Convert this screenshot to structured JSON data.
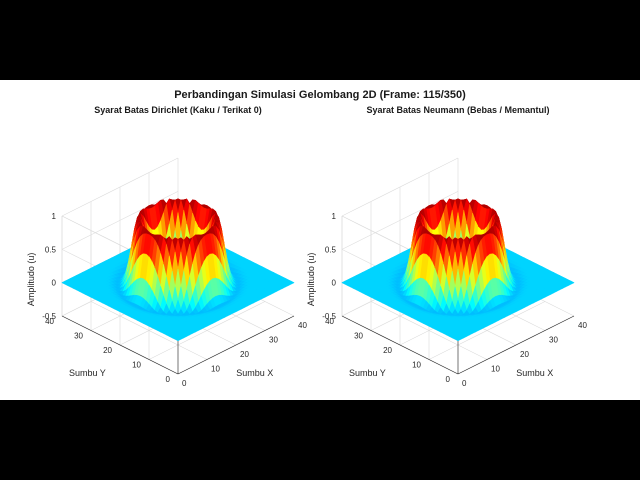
{
  "figure": {
    "title": "Perbandingan Simulasi Gelombang 2D (Frame: 115/350)"
  },
  "chart_data": [
    {
      "type": "surface",
      "title": "Syarat Batas Dirichlet (Kaku / Terikat 0)",
      "xlabel": "Sumbu X",
      "ylabel": "Sumbu Y",
      "zlabel": "Amplitudo (u)",
      "xlim": [
        0,
        40
      ],
      "ylim": [
        0,
        40
      ],
      "zlim": [
        -0.5,
        1
      ],
      "xticks": [
        "0",
        "10",
        "20",
        "30",
        "40"
      ],
      "yticks": [
        "0",
        "10",
        "20",
        "30",
        "40"
      ],
      "zticks": [
        "-0.5",
        "0",
        "0.5",
        "1"
      ],
      "colormap": "jet",
      "ring": {
        "center": [
          20,
          20
        ],
        "radius": 9.5,
        "peak": 1,
        "trough": -0.5
      },
      "grid": true
    },
    {
      "type": "surface",
      "title": "Syarat Batas Neumann (Bebas / Memantul)",
      "xlabel": "Sumbu X",
      "ylabel": "Sumbu Y",
      "zlabel": "Amplitudo (u)",
      "xlim": [
        0,
        40
      ],
      "ylim": [
        0,
        40
      ],
      "zlim": [
        -0.5,
        1
      ],
      "xticks": [
        "0",
        "10",
        "20",
        "30",
        "40"
      ],
      "yticks": [
        "0",
        "10",
        "20",
        "30",
        "40"
      ],
      "zticks": [
        "-0.5",
        "0",
        "0.5",
        "1"
      ],
      "colormap": "jet",
      "ring": {
        "center": [
          20,
          20
        ],
        "radius": 9.5,
        "peak": 1,
        "trough": -0.5
      },
      "grid": true
    }
  ]
}
